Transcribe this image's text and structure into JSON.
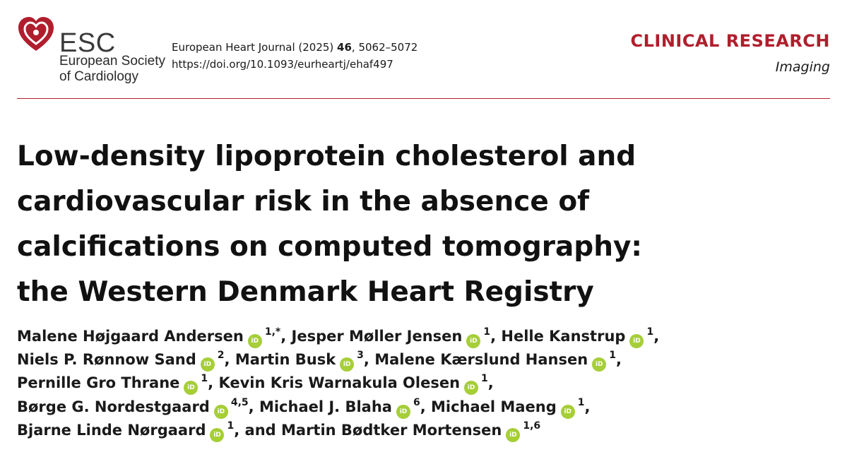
{
  "header": {
    "logo": {
      "abbr": "ESC",
      "line1": "European Society",
      "line2": "of Cardiology",
      "brand_color": "#b01e2d"
    },
    "journal_name": "European Heart Journal (2025)",
    "volume": "46",
    "pages": ", 5062–5072",
    "doi": "https://doi.org/10.1093/eurheartj/ehaf497",
    "section": "CLINICAL RESEARCH",
    "subsection": "Imaging"
  },
  "title_lines": [
    "Low-density lipoprotein cholesterol and",
    "cardiovascular risk in the absence of",
    "calcifications on computed tomography:",
    "the Western Denmark Heart Registry"
  ],
  "orcid_badge": "iD",
  "orcid_color": "#a6ce39",
  "authors": [
    {
      "name": "Malene Højgaard Andersen",
      "aff": "1,*",
      "sep": ","
    },
    {
      "name": "Jesper Møller Jensen",
      "aff": "1",
      "sep": ","
    },
    {
      "name": "Helle Kanstrup",
      "aff": "1",
      "sep": ","
    },
    {
      "name": "Niels P. Rønnow Sand",
      "aff": "2",
      "sep": ","
    },
    {
      "name": "Martin Busk",
      "aff": "3",
      "sep": ","
    },
    {
      "name": "Malene Kærslund Hansen",
      "aff": "1",
      "sep": ","
    },
    {
      "name": "Pernille Gro Thrane",
      "aff": "1",
      "sep": ","
    },
    {
      "name": "Kevin Kris Warnakula Olesen",
      "aff": "1",
      "sep": ","
    },
    {
      "name": "Børge G. Nordestgaard",
      "aff": "4,5",
      "sep": ","
    },
    {
      "name": "Michael J. Blaha",
      "aff": "6",
      "sep": ","
    },
    {
      "name": "Michael Maeng",
      "aff": "1",
      "sep": ","
    },
    {
      "name": "Bjarne Linde Nørgaard",
      "aff": "1",
      "sep": ", and"
    },
    {
      "name": "Martin Bødtker Mortensen",
      "aff": "1,6",
      "sep": ""
    }
  ]
}
